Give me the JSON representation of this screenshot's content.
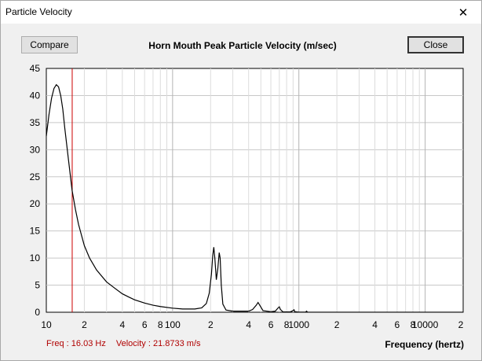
{
  "window": {
    "title": "Particle Velocity"
  },
  "buttons": {
    "compare": "Compare",
    "close": "Close"
  },
  "chart_data": {
    "type": "line",
    "title": "Horn Mouth Peak Particle Velocity (m/sec)",
    "xlabel": "Frequency (hertz)",
    "ylabel": "",
    "x_scale": "log",
    "xlim": [
      10,
      20000
    ],
    "ylim": [
      0,
      45
    ],
    "grid": true,
    "y_ticks": [
      0,
      5,
      10,
      15,
      20,
      25,
      30,
      35,
      40,
      45
    ],
    "x_tick_labels": [
      {
        "x": 10,
        "label": "10"
      },
      {
        "x": 20,
        "label": "2"
      },
      {
        "x": 40,
        "label": "4"
      },
      {
        "x": 60,
        "label": "6"
      },
      {
        "x": 80,
        "label": "8"
      },
      {
        "x": 100,
        "label": "100"
      },
      {
        "x": 200,
        "label": "2"
      },
      {
        "x": 400,
        "label": "4"
      },
      {
        "x": 600,
        "label": "6"
      },
      {
        "x": 800,
        "label": "8"
      },
      {
        "x": 1000,
        "label": "1000"
      },
      {
        "x": 2000,
        "label": "2"
      },
      {
        "x": 4000,
        "label": "4"
      },
      {
        "x": 6000,
        "label": "6"
      },
      {
        "x": 8000,
        "label": "8"
      },
      {
        "x": 10000,
        "label": "10000"
      },
      {
        "x": 20000,
        "label": "2"
      }
    ],
    "marker": {
      "x": 16.03,
      "color": "#cc0000"
    },
    "line_color": "#000000",
    "series": [
      {
        "points": [
          [
            10,
            32.5
          ],
          [
            10.5,
            36.5
          ],
          [
            11,
            39.5
          ],
          [
            11.5,
            41.3
          ],
          [
            12,
            42
          ],
          [
            12.5,
            41.6
          ],
          [
            13,
            40
          ],
          [
            13.5,
            37.5
          ],
          [
            14,
            34
          ],
          [
            15,
            28
          ],
          [
            16,
            22.5
          ],
          [
            17,
            19
          ],
          [
            18,
            16.2
          ],
          [
            20,
            12.3
          ],
          [
            22,
            10
          ],
          [
            25,
            7.8
          ],
          [
            30,
            5.6
          ],
          [
            35,
            4.4
          ],
          [
            40,
            3.4
          ],
          [
            45,
            2.8
          ],
          [
            50,
            2.3
          ],
          [
            60,
            1.7
          ],
          [
            70,
            1.3
          ],
          [
            80,
            1.05
          ],
          [
            100,
            0.75
          ],
          [
            120,
            0.6
          ],
          [
            150,
            0.6
          ],
          [
            170,
            0.8
          ],
          [
            185,
            1.6
          ],
          [
            195,
            3.5
          ],
          [
            203,
            7
          ],
          [
            208,
            10.5
          ],
          [
            212,
            12
          ],
          [
            216,
            10
          ],
          [
            222,
            6
          ],
          [
            228,
            8
          ],
          [
            234,
            11
          ],
          [
            238,
            10
          ],
          [
            243,
            5
          ],
          [
            250,
            1.5
          ],
          [
            265,
            0.4
          ],
          [
            300,
            0.2
          ],
          [
            400,
            0.2
          ],
          [
            430,
            0.5
          ],
          [
            460,
            1.3
          ],
          [
            475,
            1.8
          ],
          [
            490,
            1.3
          ],
          [
            520,
            0.3
          ],
          [
            600,
            0.1
          ],
          [
            650,
            0.2
          ],
          [
            685,
            0.8
          ],
          [
            700,
            1
          ],
          [
            715,
            0.5
          ],
          [
            750,
            0.05
          ],
          [
            850,
            0.05
          ],
          [
            900,
            0.3
          ],
          [
            915,
            0.45
          ],
          [
            930,
            0.1
          ],
          [
            1000,
            0.02
          ],
          [
            1130,
            0.02
          ],
          [
            1150,
            0.2
          ],
          [
            1170,
            0.03
          ],
          [
            2000,
            0.01
          ],
          [
            20000,
            0.01
          ]
        ]
      }
    ]
  },
  "status": {
    "freq": "Freq : 16.03 Hz",
    "velocity": "Velocity : 21.8733 m/s"
  }
}
